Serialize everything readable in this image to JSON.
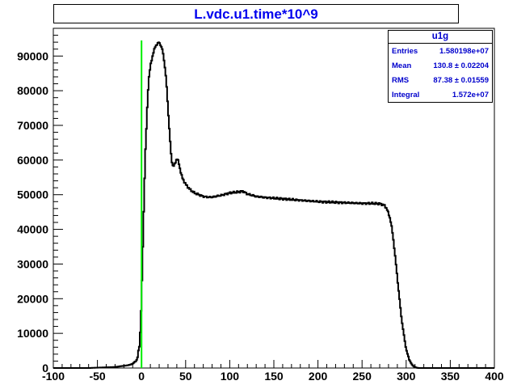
{
  "chart_data": {
    "type": "histogram",
    "title": "L.vdc.u1.time*10^9",
    "xlim": [
      -100,
      400
    ],
    "ylim": [
      0,
      98000
    ],
    "x_ticks": [
      -100,
      -50,
      0,
      50,
      100,
      150,
      200,
      250,
      300,
      350,
      400
    ],
    "y_ticks": [
      0,
      10000,
      20000,
      30000,
      40000,
      50000,
      60000,
      70000,
      80000,
      90000
    ],
    "x_tick_labels": [
      "-100",
      "-50",
      "0",
      "50",
      "100",
      "150",
      "200",
      "250",
      "300",
      "350",
      "400"
    ],
    "y_tick_labels": [
      "0",
      "10000",
      "20000",
      "30000",
      "40000",
      "50000",
      "60000",
      "70000",
      "80000",
      "90000"
    ],
    "series": [
      {
        "color": "#000000",
        "x": [
          -100,
          -60,
          -30,
          -15,
          -10,
          -5,
          -2,
          0,
          1,
          2,
          3,
          4,
          5,
          6,
          7,
          8,
          10,
          12,
          14,
          16,
          18,
          20,
          22,
          24,
          26,
          28,
          30,
          32,
          34,
          36,
          38,
          40,
          42,
          44,
          46,
          48,
          50,
          55,
          60,
          65,
          70,
          75,
          80,
          90,
          100,
          110,
          115,
          120,
          130,
          140,
          150,
          160,
          170,
          180,
          190,
          200,
          210,
          220,
          230,
          240,
          250,
          260,
          270,
          275,
          278,
          280,
          282,
          284,
          286,
          288,
          290,
          292,
          294,
          296,
          298,
          300,
          302,
          304,
          306,
          308,
          310,
          312,
          315,
          320,
          330,
          350,
          400
        ],
        "y": [
          0,
          0,
          300,
          800,
          1200,
          2500,
          7000,
          20000,
          30000,
          40000,
          50000,
          60000,
          66000,
          72000,
          78000,
          83000,
          87000,
          89500,
          91500,
          93000,
          93500,
          94000,
          93000,
          91500,
          88000,
          83000,
          75000,
          67000,
          60000,
          58000,
          59000,
          60500,
          59500,
          57000,
          55000,
          54000,
          53000,
          51500,
          50500,
          50000,
          49500,
          49300,
          49300,
          49800,
          50500,
          50800,
          51000,
          50200,
          49500,
          49200,
          49000,
          48800,
          48600,
          48400,
          48200,
          48000,
          47900,
          47800,
          47700,
          47600,
          47500,
          47500,
          47400,
          47000,
          46000,
          44500,
          43000,
          40000,
          36000,
          31000,
          26000,
          21000,
          16000,
          12000,
          8500,
          5500,
          3500,
          2200,
          1200,
          600,
          250,
          80,
          0,
          0,
          0,
          0,
          0
        ]
      }
    ],
    "marker_line": {
      "x": 0,
      "y": 94500,
      "color": "#00ee00"
    },
    "stats": {
      "name": "u1g",
      "rows": [
        {
          "label": "Entries",
          "value": "1.580198e+07"
        },
        {
          "label": "Mean",
          "value": "130.8 ± 0.02204"
        },
        {
          "label": "RMS",
          "value": "87.38 ± 0.01559"
        },
        {
          "label": "Integral",
          "value": "1.572e+07"
        }
      ]
    },
    "grid": false
  }
}
